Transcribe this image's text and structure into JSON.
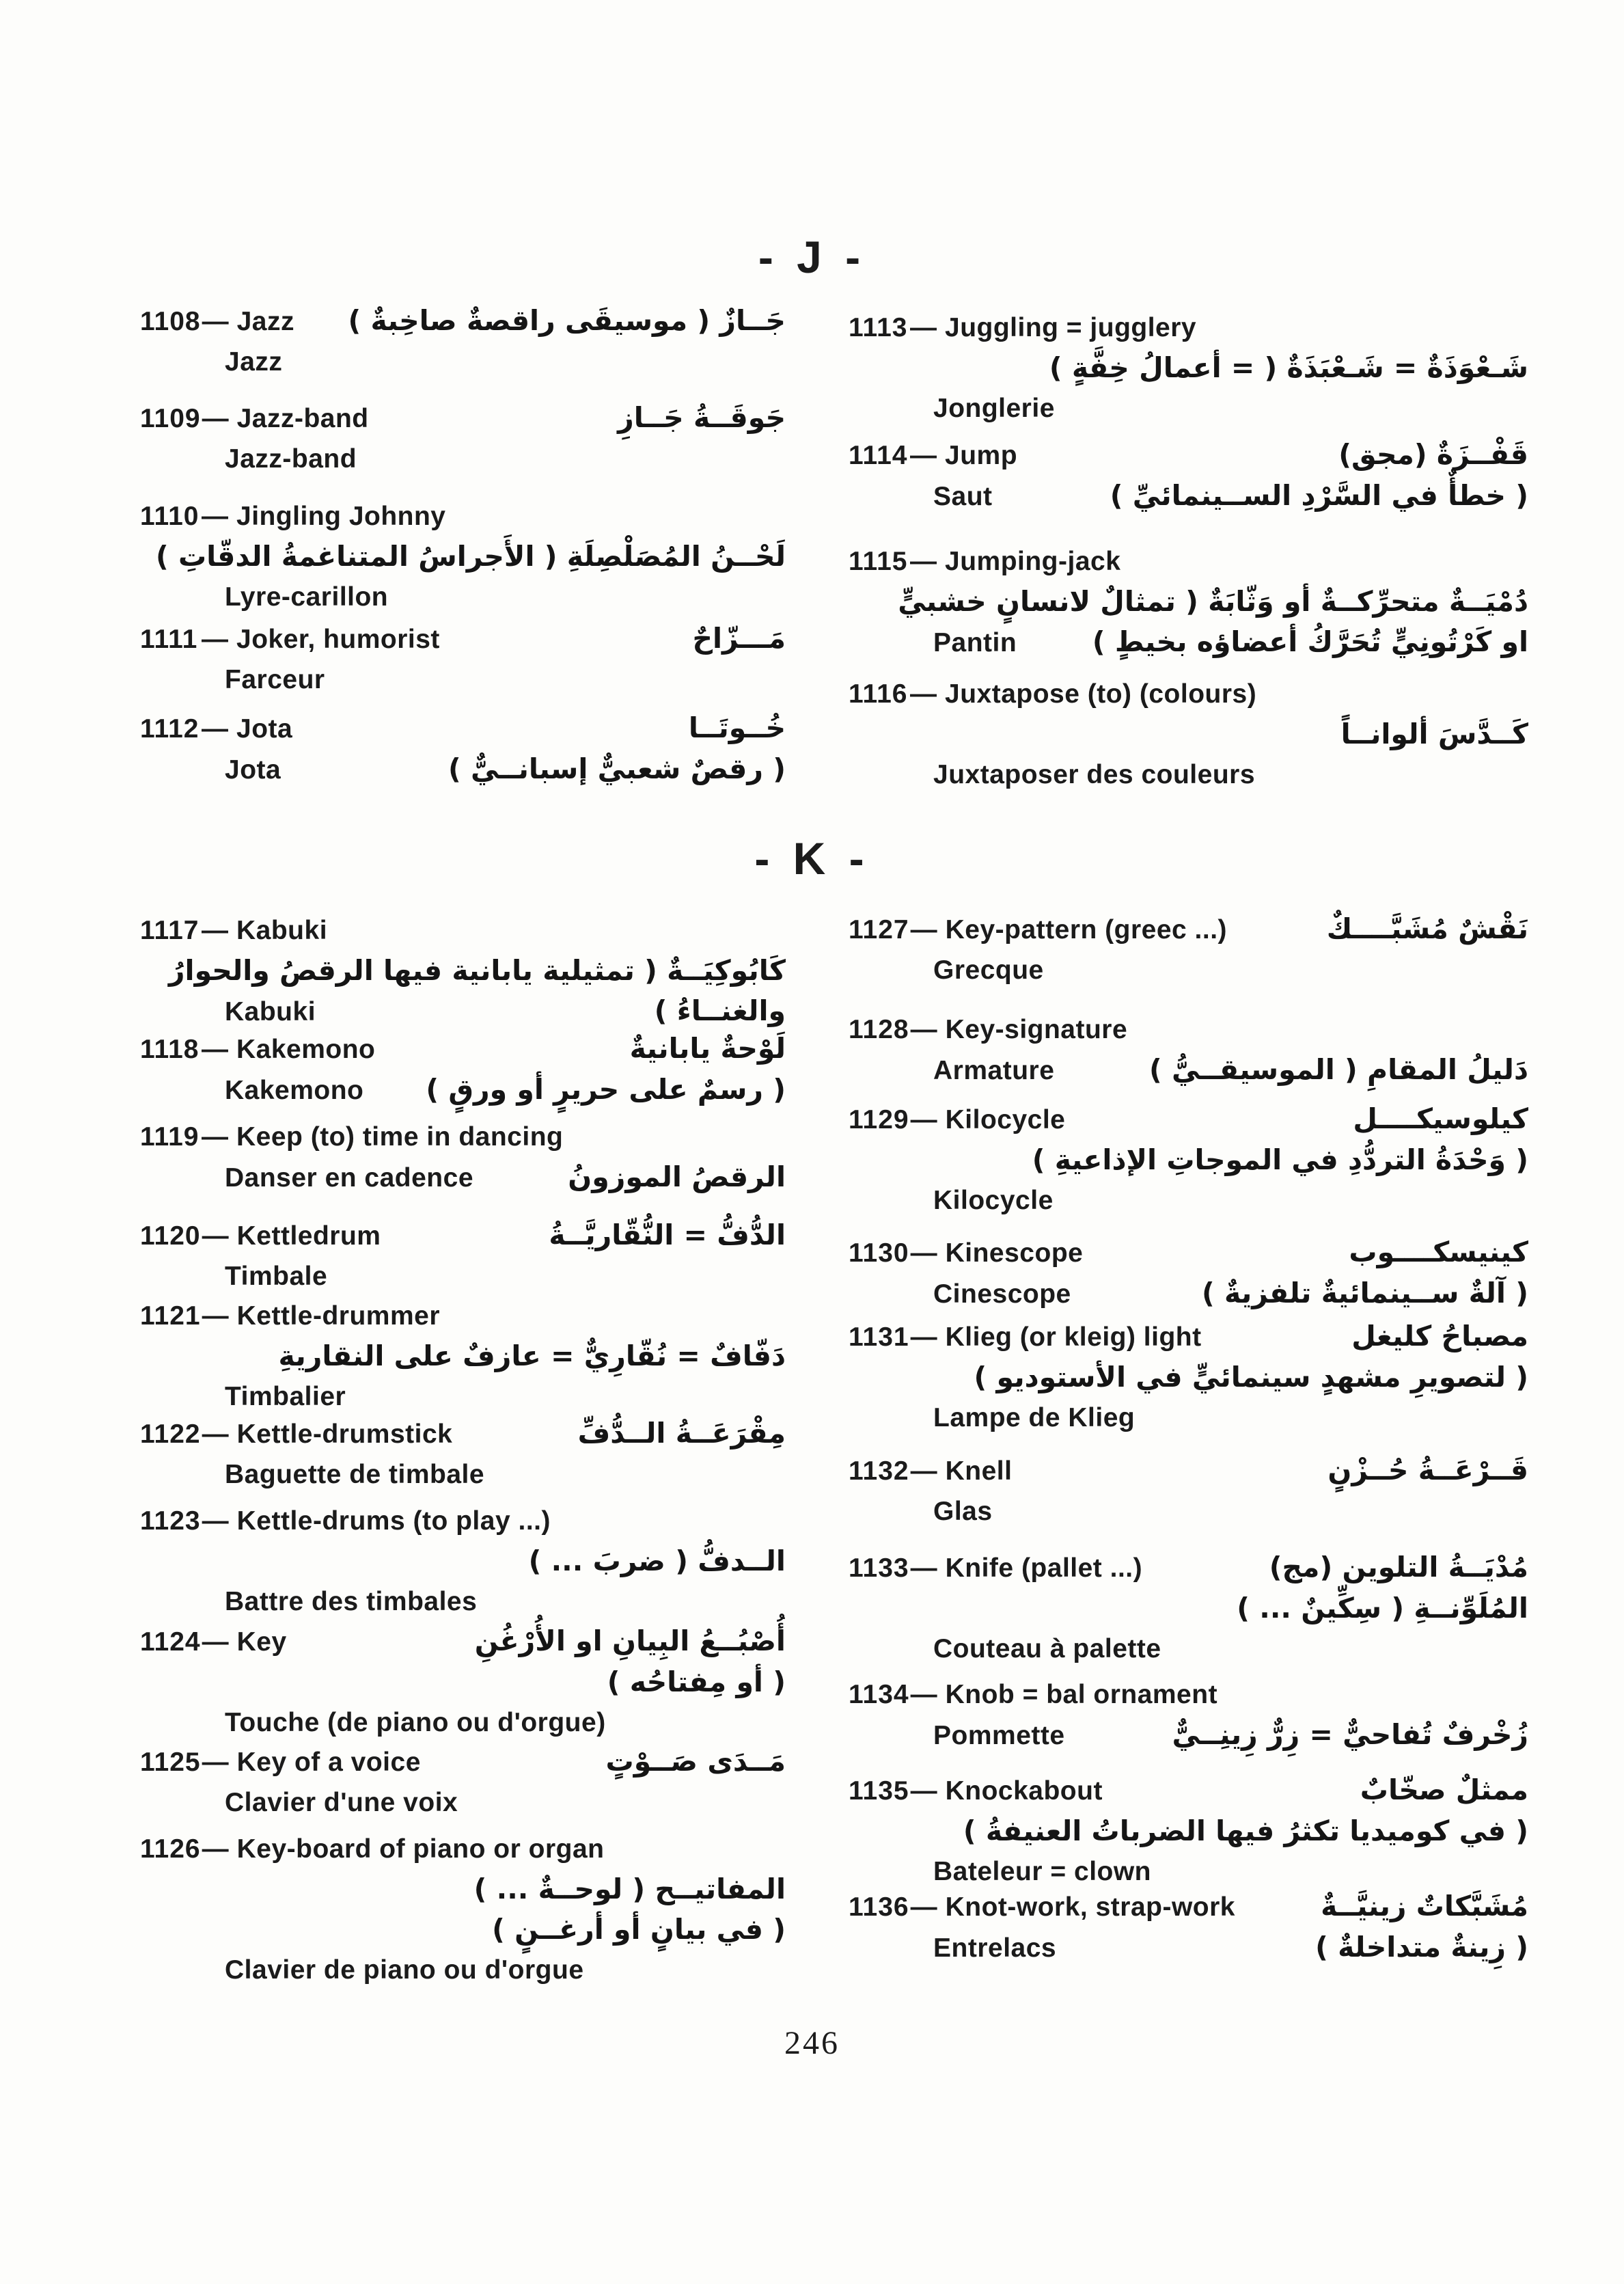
{
  "page": {
    "number": "246"
  },
  "dash": "—",
  "sections": [
    {
      "letter_header": "- J -",
      "entries": [
        {
          "number": "1108",
          "lines": [
            {
              "type": "head",
              "term": "Jazz",
              "ar": "جَــازٌ ( موسيقَى راقصةٌ صاخِبةٌ )"
            },
            {
              "type": "fr",
              "text": "Jazz"
            }
          ]
        },
        {
          "number": "1109",
          "lines": [
            {
              "type": "head",
              "term": "Jazz-band",
              "ar": "جَوقَــةُ جَــازِ"
            },
            {
              "type": "fr",
              "text": "Jazz-band"
            }
          ]
        },
        {
          "number": "1110",
          "lines": [
            {
              "type": "head",
              "term": "Jingling Johnny"
            },
            {
              "type": "ar",
              "ar": "لَحْــنُ المُصَلْصِلَةِ ( الأَجراسُ المتناغمةُ الدقّاتِ )"
            },
            {
              "type": "fr",
              "text": "Lyre-carillon"
            }
          ]
        },
        {
          "number": "1111",
          "lines": [
            {
              "type": "head",
              "term": "Joker, humorist",
              "ar": "مَـــزّاحٌ"
            },
            {
              "type": "fr",
              "text": "Farceur"
            }
          ]
        },
        {
          "number": "1112",
          "lines": [
            {
              "type": "head",
              "term": "Jota",
              "ar": "خُــوتَــا"
            },
            {
              "type": "fr",
              "text": "Jota",
              "ar": "( رقصٌ شعبيٌّ إسبانــيٌّ )"
            }
          ]
        },
        {
          "number": "1113",
          "lines": [
            {
              "type": "head",
              "term": "Juggling = jugglery"
            },
            {
              "type": "ar",
              "ar": "شَـعْوَذَةٌ = شَـعْبَذَةٌ ( = أعمالُ خِفَّةٍ )"
            },
            {
              "type": "fr",
              "text": "Jonglerie"
            }
          ]
        },
        {
          "number": "1114",
          "lines": [
            {
              "type": "head",
              "term": "Jump",
              "ar": "قَفْــزَةٌ (مجق)"
            },
            {
              "type": "fr",
              "text": "Saut",
              "ar": "( خطأٌ في السَّرْدِ الســينمائيِّ )"
            }
          ]
        },
        {
          "number": "1115",
          "lines": [
            {
              "type": "head",
              "term": "Jumping-jack"
            },
            {
              "type": "ar",
              "ar": "دُمْيَــةٌ متحرِّكــةٌ أو وَثّابَةٌ ( تمثالٌ لانسانٍ خشبيٍّ"
            },
            {
              "type": "fr",
              "text": "Pantin",
              "ar": "او كَرْتُونِيٍّ تُحَرَّكُ أعضاؤه بخيطٍ )"
            }
          ]
        },
        {
          "number": "1116",
          "lines": [
            {
              "type": "head",
              "term": "Juxtapose (to) (colours)"
            },
            {
              "type": "ar",
              "ar": "كَــدَّسَ ألوانــاً"
            },
            {
              "type": "fr",
              "text": "Juxtaposer des couleurs"
            }
          ]
        }
      ]
    },
    {
      "letter_header": "- K -",
      "entries": [
        {
          "number": "1117",
          "lines": [
            {
              "type": "head",
              "term": "Kabuki"
            },
            {
              "type": "ar",
              "ar": "كَابُوكِيَــةٌ ( تمثيلية يابانية فيها الرقصُ والحوارُ"
            },
            {
              "type": "fr",
              "text": "Kabuki",
              "ar": "والغنــاءُ )"
            }
          ]
        },
        {
          "number": "1118",
          "lines": [
            {
              "type": "head",
              "term": "Kakemono",
              "ar": "لَوْحةٌ يابانيةٌ"
            },
            {
              "type": "fr",
              "text": "Kakemono",
              "ar": "( رسمٌ على حريرٍ أو ورقٍ )"
            }
          ]
        },
        {
          "number": "1119",
          "lines": [
            {
              "type": "head",
              "term": "Keep (to) time in dancing"
            },
            {
              "type": "fr",
              "text": "Danser en cadence",
              "ar": "الرقصُ الموزونُ"
            }
          ]
        },
        {
          "number": "1120",
          "lines": [
            {
              "type": "head",
              "term": "Kettledrum",
              "ar": "الدُّفُّ = النُّقّاريَّــةُ"
            },
            {
              "type": "fr",
              "text": "Timbale"
            }
          ]
        },
        {
          "number": "1121",
          "lines": [
            {
              "type": "head",
              "term": "Kettle-drummer"
            },
            {
              "type": "ar",
              "ar": "دَفّافٌ = نُقّارِيٌّ = عازفٌ على النقاريةِ"
            },
            {
              "type": "fr",
              "text": "Timbalier"
            }
          ]
        },
        {
          "number": "1122",
          "lines": [
            {
              "type": "head",
              "term": "Kettle-drumstick",
              "ar": "مِقْرَعَــةُ الــدُّفِّ"
            },
            {
              "type": "fr",
              "text": "Baguette de timbale"
            }
          ]
        },
        {
          "number": "1123",
          "lines": [
            {
              "type": "head",
              "term": "Kettle-drums (to play ...)"
            },
            {
              "type": "ar",
              "ar": "الــدفُّ ( ضربَ ... )"
            },
            {
              "type": "fr",
              "text": "Battre des timbales"
            }
          ]
        },
        {
          "number": "1124",
          "lines": [
            {
              "type": "head",
              "term": "Key",
              "ar": "أُصْبُــعُ البِيانِ او الأُرْغُنِ"
            },
            {
              "type": "ar",
              "ar": "( أو مِفتاحُه )"
            },
            {
              "type": "fr",
              "text": "Touche (de piano ou d'orgue)"
            }
          ]
        },
        {
          "number": "1125",
          "lines": [
            {
              "type": "head",
              "term": "Key of a voice",
              "ar": "مَــدَى صَــوْتٍ"
            },
            {
              "type": "fr",
              "text": "Clavier d'une voix"
            }
          ]
        },
        {
          "number": "1126",
          "lines": [
            {
              "type": "head",
              "term": "Key-board of piano or organ"
            },
            {
              "type": "ar",
              "ar": "المفاتيــح ( لوحــةٌ ... )"
            },
            {
              "type": "ar",
              "ar": "( في بيانٍ أو أرغــنٍ )"
            },
            {
              "type": "fr",
              "text": "Clavier de piano ou d'orgue"
            }
          ]
        },
        {
          "number": "1127",
          "lines": [
            {
              "type": "head",
              "term": "Key-pattern (greec ...)",
              "ar": "نَقْشٌ مُشَبَّــــكٌ"
            },
            {
              "type": "fr",
              "text": "Grecque"
            }
          ]
        },
        {
          "number": "1128",
          "lines": [
            {
              "type": "head",
              "term": "Key-signature"
            },
            {
              "type": "fr",
              "text": "Armature",
              "ar": "دَليلُ المقامِ ( الموسيقــيُّ )"
            }
          ]
        },
        {
          "number": "1129",
          "lines": [
            {
              "type": "head",
              "term": "Kilocycle",
              "ar": "كيلوسيكــــل"
            },
            {
              "type": "ar",
              "ar": "( وَحْدَةُ التردُّدِ في الموجاتِ الإذاعيةِ )"
            },
            {
              "type": "fr",
              "text": "Kilocycle"
            }
          ]
        },
        {
          "number": "1130",
          "lines": [
            {
              "type": "head",
              "term": "Kinescope",
              "ar": "كينيسكــــوب"
            },
            {
              "type": "fr",
              "text": "Cinescope",
              "ar": "( آلةٌ ســينمائيةٌ تلفزيةٌ )"
            }
          ]
        },
        {
          "number": "1131",
          "lines": [
            {
              "type": "head",
              "term": "Klieg (or kleig) light",
              "ar": "مصباحُ كليغل"
            },
            {
              "type": "ar",
              "ar": "( لتصويرِ مشهدٍ سينمائيٍّ في الأستوديو )"
            },
            {
              "type": "fr",
              "text": "Lampe de Klieg"
            }
          ]
        },
        {
          "number": "1132",
          "lines": [
            {
              "type": "head",
              "term": "Knell",
              "ar": "قَــرْعَــةُ حُــزْنٍ"
            },
            {
              "type": "fr",
              "text": "Glas"
            }
          ]
        },
        {
          "number": "1133",
          "lines": [
            {
              "type": "head",
              "term": "Knife (pallet ...)",
              "ar": "مُدْيَــةُ التلوين (مج)"
            },
            {
              "type": "ar",
              "ar": "المُلَوِّنــةِ ( سِكِّينٌ ... )"
            },
            {
              "type": "fr",
              "text": "Couteau à palette"
            }
          ]
        },
        {
          "number": "1134",
          "lines": [
            {
              "type": "head",
              "term": "Knob = bal ornament"
            },
            {
              "type": "fr",
              "text": "Pommette",
              "ar": "زُخْرفٌ تُفاحيٌّ = زِرٌّ زِينِــيٌّ"
            }
          ]
        },
        {
          "number": "1135",
          "lines": [
            {
              "type": "head",
              "term": "Knockabout",
              "ar": "ممثلٌ صخّابٌ"
            },
            {
              "type": "ar",
              "ar": "( في كوميديا تكثرُ فيها الضرباتُ العنيفةُ )"
            },
            {
              "type": "fr",
              "text": "Bateleur = clown"
            }
          ]
        },
        {
          "number": "1136",
          "lines": [
            {
              "type": "head",
              "term": "Knot-work, strap-work",
              "ar": "مُشَبَّكاتٌ زينيَّــةٌ"
            },
            {
              "type": "fr",
              "text": "Entrelacs",
              "ar": "( زِينةٌ متداخلةٌ )"
            }
          ]
        }
      ]
    }
  ]
}
